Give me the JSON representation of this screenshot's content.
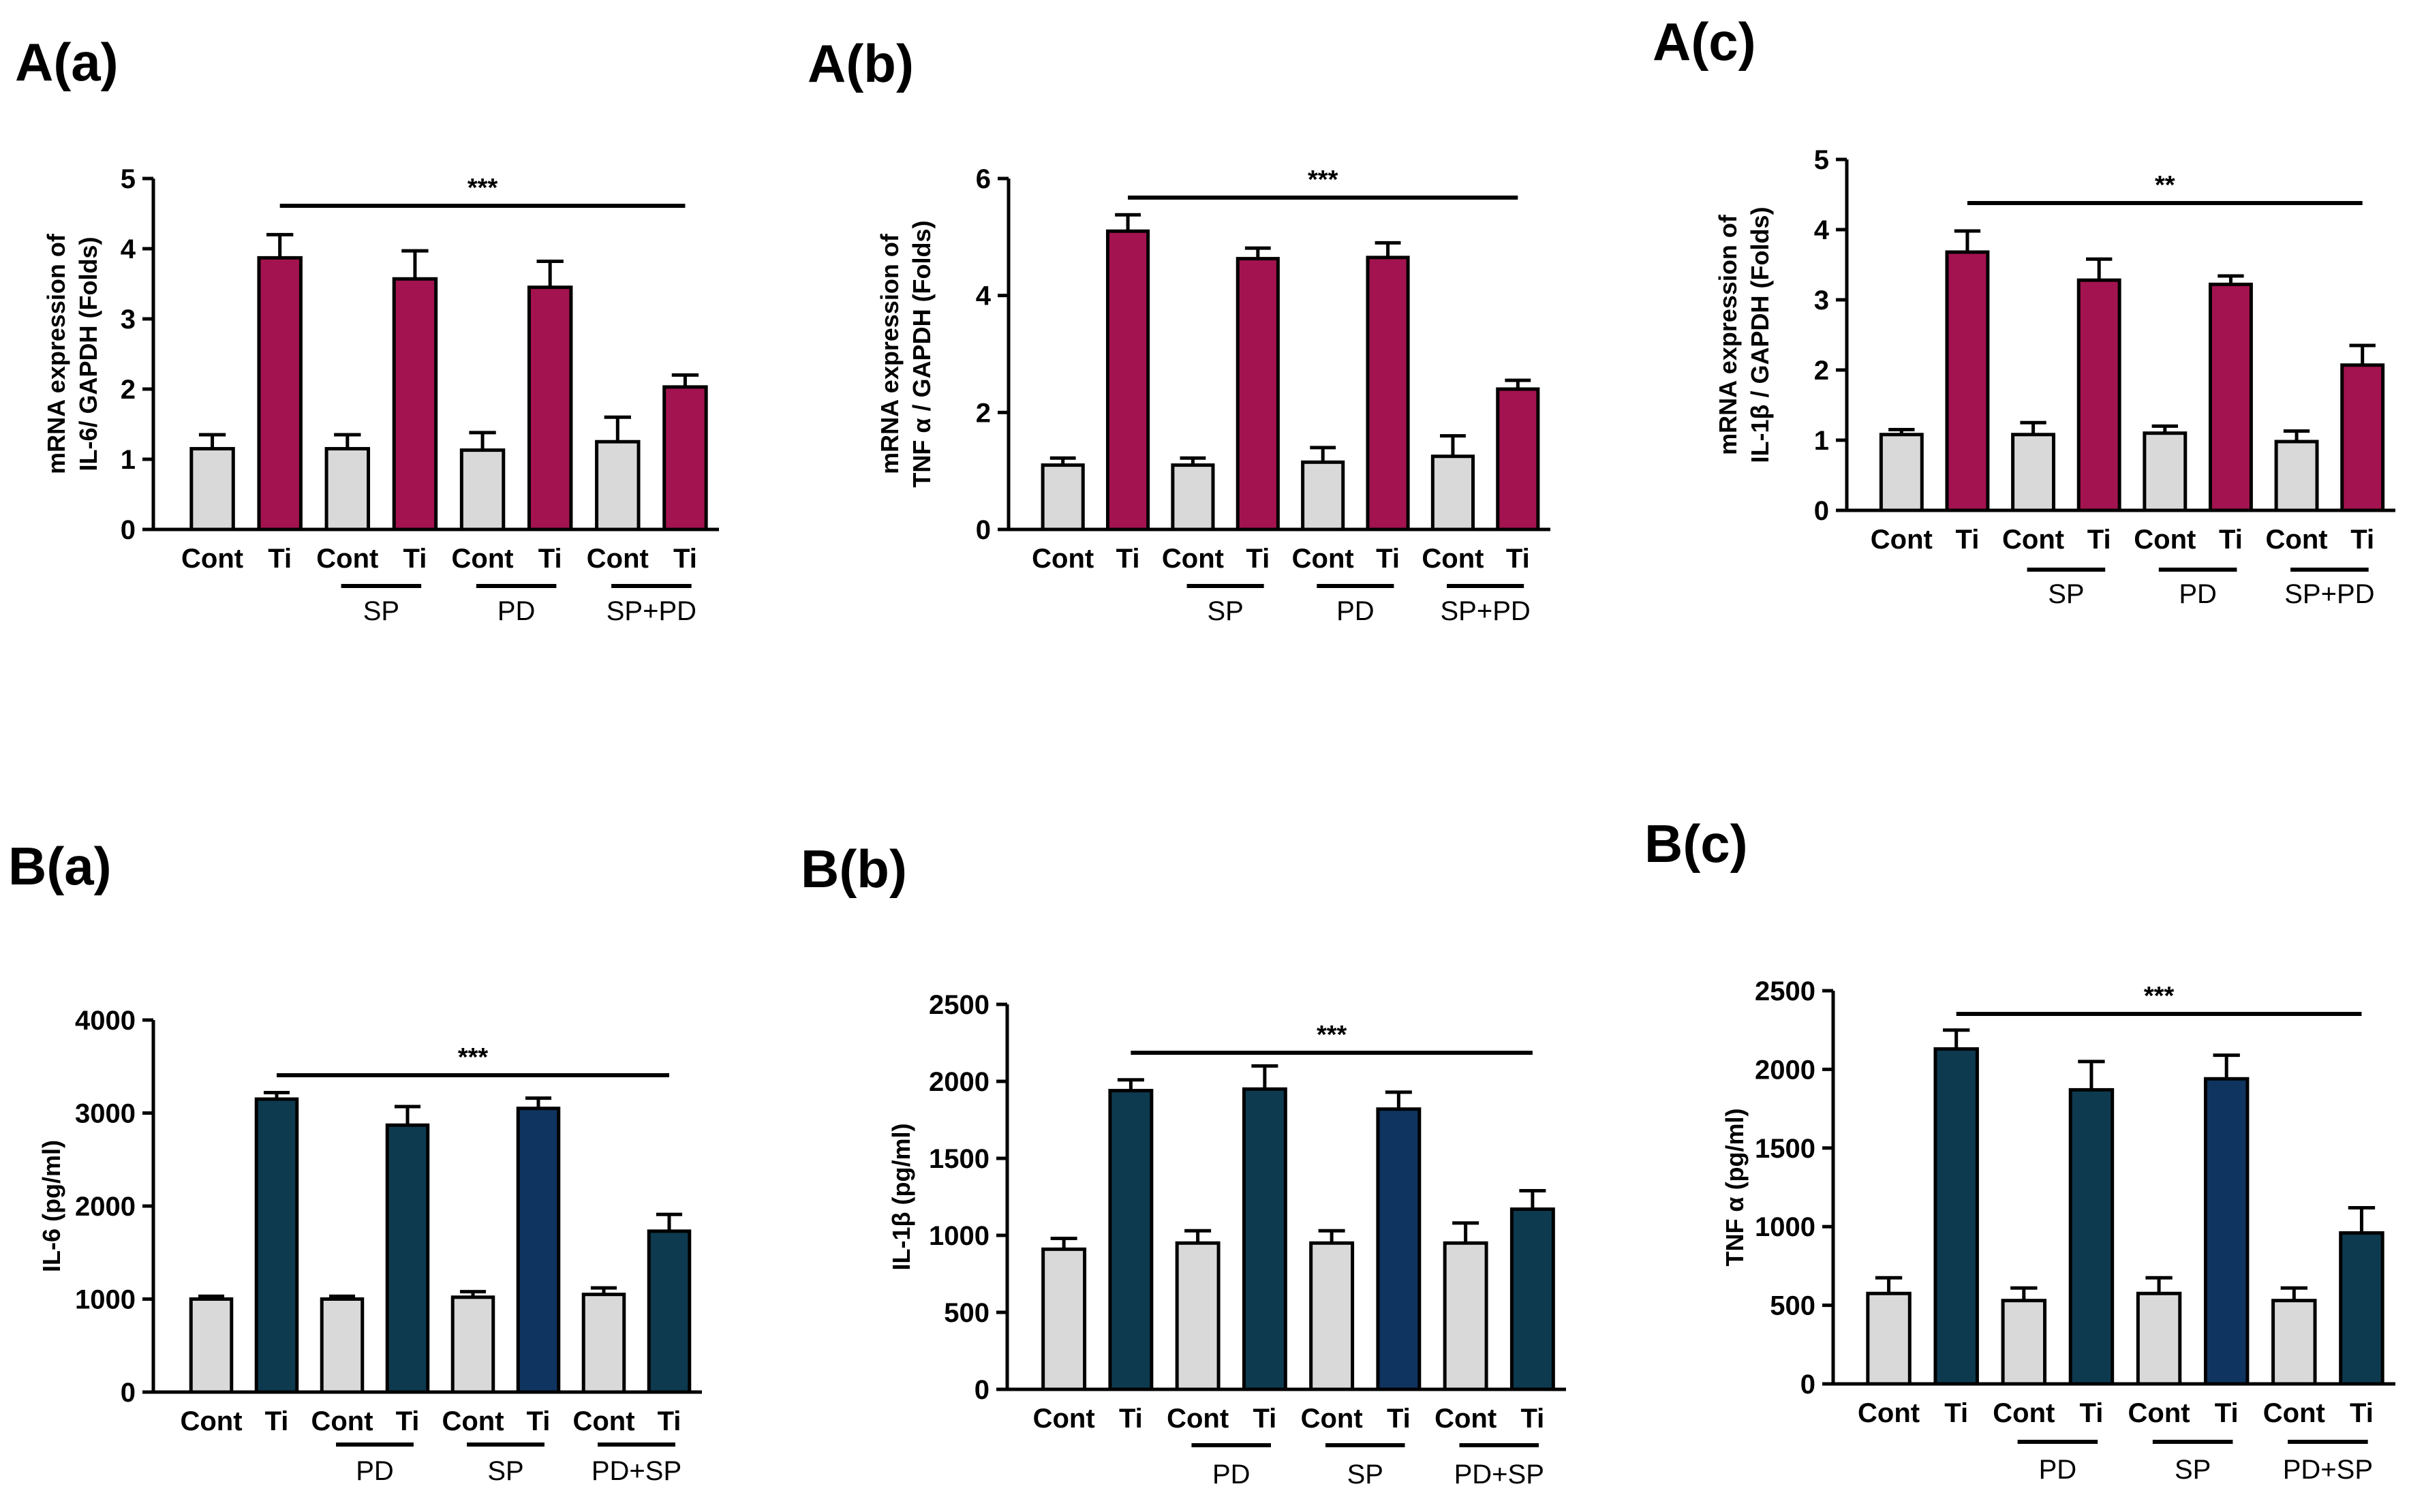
{
  "colors": {
    "control": "#d9d9d9",
    "ti_top": "#a3134f",
    "ti_bottom": "#0d3a4f",
    "ti_bottom_alt": "#0f3460",
    "axis": "#000000"
  },
  "chart_data": [
    {
      "type": "bar",
      "panel_label": "A(a)",
      "ylabel_lines": [
        "mRNA expression of",
        "IL-6/ GAPDH (Folds)"
      ],
      "ylim": [
        0,
        5
      ],
      "yticks": [
        "0",
        "1",
        "2",
        "3",
        "4",
        "5"
      ],
      "categories": [
        "Cont",
        "Ti",
        "Cont",
        "Ti",
        "Cont",
        "Ti",
        "Cont",
        "Ti"
      ],
      "values": [
        1.15,
        3.87,
        1.15,
        3.57,
        1.13,
        3.45,
        1.25,
        2.03
      ],
      "errors": [
        0.2,
        0.33,
        0.2,
        0.4,
        0.25,
        0.37,
        0.35,
        0.17
      ],
      "groups": [
        "SP",
        "PD",
        "SP+PD"
      ],
      "significance": "***",
      "grid": false
    },
    {
      "type": "bar",
      "panel_label": "A(b)",
      "ylabel_lines": [
        "mRNA expression of",
        "TNF α / GAPDH (Folds)"
      ],
      "ylim": [
        0,
        6
      ],
      "yticks": [
        "0",
        "2",
        "4",
        "6"
      ],
      "categories": [
        "Cont",
        "Ti",
        "Cont",
        "Ti",
        "Cont",
        "Ti",
        "Cont",
        "Ti"
      ],
      "values": [
        1.1,
        5.1,
        1.1,
        4.63,
        1.15,
        4.65,
        1.25,
        2.4
      ],
      "errors": [
        0.12,
        0.28,
        0.12,
        0.18,
        0.25,
        0.25,
        0.35,
        0.15
      ],
      "groups": [
        "SP",
        "PD",
        "SP+PD"
      ],
      "significance": "***",
      "grid": false
    },
    {
      "type": "bar",
      "panel_label": "A(c)",
      "ylabel_lines": [
        "mRNA expression of",
        "IL-1β / GAPDH (Folds)"
      ],
      "ylim": [
        0,
        5
      ],
      "yticks": [
        "0",
        "1",
        "2",
        "3",
        "4",
        "5"
      ],
      "categories": [
        "Cont",
        "Ti",
        "Cont",
        "Ti",
        "Cont",
        "Ti",
        "Cont",
        "Ti"
      ],
      "values": [
        1.08,
        3.68,
        1.08,
        3.28,
        1.1,
        3.22,
        0.98,
        2.07
      ],
      "errors": [
        0.07,
        0.3,
        0.17,
        0.3,
        0.1,
        0.12,
        0.15,
        0.28
      ],
      "groups": [
        "SP",
        "PD",
        "SP+PD"
      ],
      "significance": "**",
      "grid": false
    },
    {
      "type": "bar",
      "panel_label": "B(a)",
      "ylabel_lines": [
        "IL-6 (pg/ml)"
      ],
      "ylim": [
        0,
        4000
      ],
      "yticks": [
        "0",
        "1000",
        "2000",
        "3000",
        "4000"
      ],
      "categories": [
        "Cont",
        "Ti",
        "Cont",
        "Ti",
        "Cont",
        "Ti",
        "Cont",
        "Ti"
      ],
      "values": [
        1000,
        3150,
        1000,
        2870,
        1020,
        3050,
        1050,
        1730
      ],
      "errors": [
        30,
        70,
        30,
        200,
        60,
        110,
        70,
        180
      ],
      "groups": [
        "PD",
        "SP",
        "PD+SP"
      ],
      "significance": "***",
      "grid": false
    },
    {
      "type": "bar",
      "panel_label": "B(b)",
      "ylabel_lines": [
        "IL-1β (pg/ml)"
      ],
      "ylim": [
        0,
        2500
      ],
      "yticks": [
        "0",
        "500",
        "1000",
        "1500",
        "2000",
        "2500"
      ],
      "categories": [
        "Cont",
        "Ti",
        "Cont",
        "Ti",
        "Cont",
        "Ti",
        "Cont",
        "Ti"
      ],
      "values": [
        910,
        1940,
        950,
        1950,
        950,
        1820,
        950,
        1170
      ],
      "errors": [
        70,
        70,
        80,
        150,
        80,
        110,
        130,
        120
      ],
      "groups": [
        "PD",
        "SP",
        "PD+SP"
      ],
      "significance": "***",
      "grid": false
    },
    {
      "type": "bar",
      "panel_label": "B(c)",
      "ylabel_lines": [
        "TNF α (pg/ml)"
      ],
      "ylim": [
        0,
        2500
      ],
      "yticks": [
        "0",
        "500",
        "1000",
        "1500",
        "2000",
        "2500"
      ],
      "categories": [
        "Cont",
        "Ti",
        "Cont",
        "Ti",
        "Cont",
        "Ti",
        "Cont",
        "Ti"
      ],
      "values": [
        575,
        2130,
        530,
        1870,
        575,
        1940,
        530,
        960
      ],
      "errors": [
        100,
        120,
        80,
        180,
        100,
        150,
        80,
        160
      ],
      "groups": [
        "PD",
        "SP",
        "PD+SP"
      ],
      "significance": "***",
      "grid": false
    }
  ]
}
